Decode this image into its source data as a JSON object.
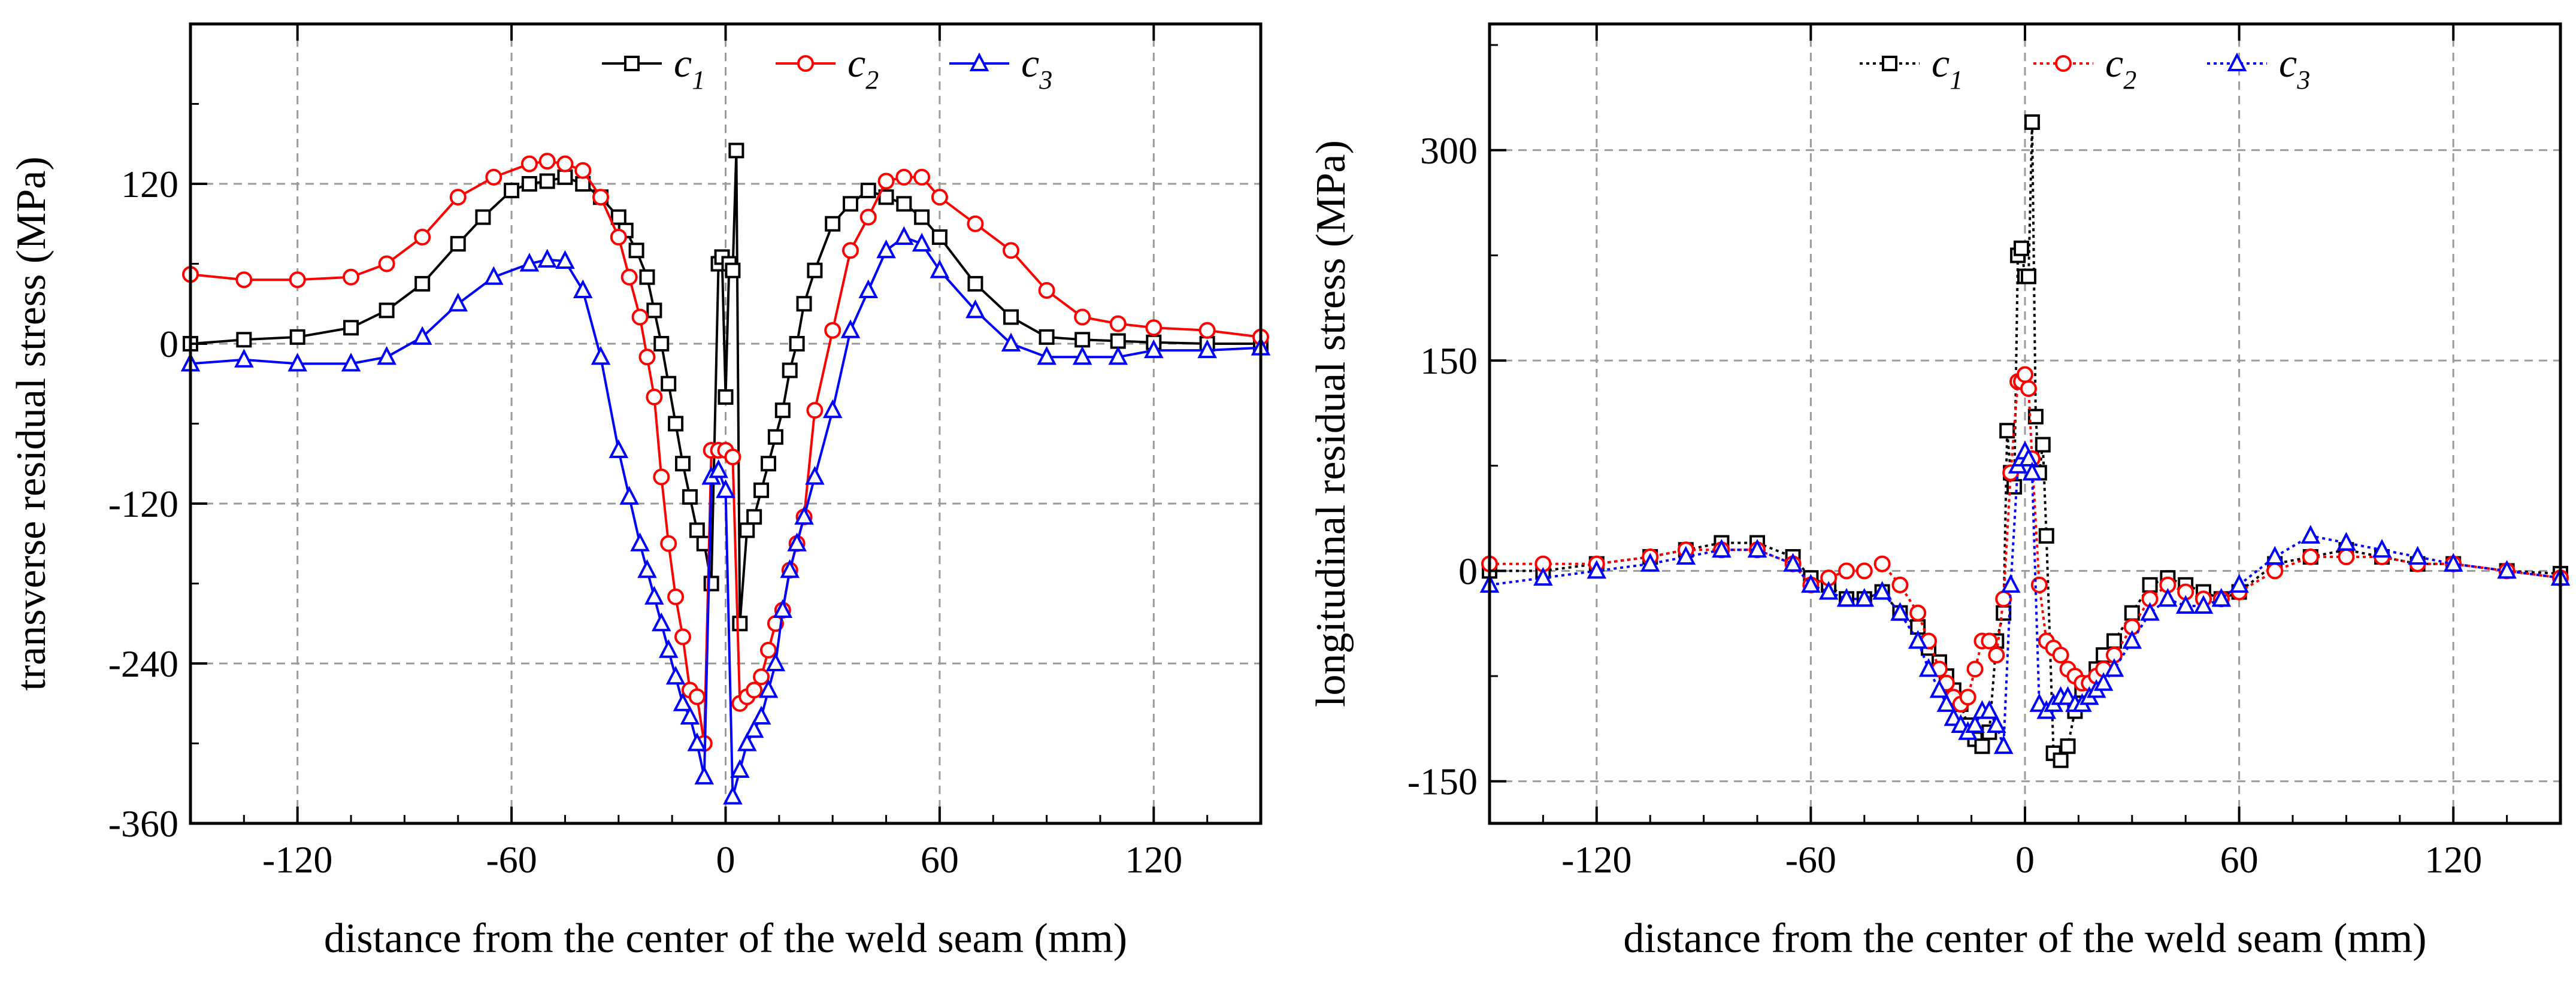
{
  "chart_data": [
    {
      "type": "line",
      "id": "transverse",
      "xlabel": "distance from the center of the weld seam (mm)",
      "ylabel": "transverse residual stress (MPa)",
      "xlim": [
        -150,
        150
      ],
      "ylim": [
        -360,
        240
      ],
      "xticks": [
        -120,
        -60,
        0,
        60,
        120
      ],
      "yticks": [
        -360,
        -240,
        -120,
        0,
        120
      ],
      "grid": true,
      "legend_position": "top-right",
      "series": [
        {
          "name": "c1",
          "letter": "c",
          "subscript": "1",
          "color": "#000000",
          "marker": "square",
          "dotted": false,
          "x": [
            -150,
            -135,
            -120,
            -105,
            -95,
            -85,
            -75,
            -68,
            -60,
            -55,
            -50,
            -45,
            -40,
            -35,
            -30,
            -28,
            -25,
            -22,
            -20,
            -18,
            -16,
            -14,
            -12,
            -10,
            -8,
            -6,
            -4,
            -2,
            -1,
            0,
            1,
            2,
            3,
            4,
            6,
            8,
            10,
            12,
            14,
            16,
            18,
            20,
            22,
            25,
            30,
            35,
            40,
            45,
            50,
            55,
            60,
            70,
            80,
            90,
            100,
            110,
            120,
            135,
            150
          ],
          "y": [
            0,
            3,
            5,
            12,
            25,
            45,
            75,
            95,
            115,
            120,
            122,
            125,
            120,
            110,
            95,
            85,
            70,
            50,
            25,
            0,
            -30,
            -60,
            -90,
            -115,
            -140,
            -150,
            -180,
            60,
            65,
            -40,
            60,
            55,
            145,
            -210,
            -140,
            -130,
            -110,
            -90,
            -70,
            -50,
            -20,
            0,
            30,
            55,
            90,
            105,
            115,
            110,
            105,
            95,
            80,
            45,
            20,
            5,
            3,
            2,
            1,
            0,
            0
          ]
        },
        {
          "name": "c2",
          "letter": "c",
          "subscript": "2",
          "color": "#ff0000",
          "marker": "circle",
          "dotted": false,
          "x": [
            -150,
            -135,
            -120,
            -105,
            -95,
            -85,
            -75,
            -65,
            -55,
            -50,
            -45,
            -40,
            -35,
            -30,
            -27,
            -24,
            -22,
            -20,
            -18,
            -16,
            -14,
            -12,
            -10,
            -8,
            -6,
            -4,
            -2,
            0,
            2,
            4,
            6,
            8,
            10,
            12,
            14,
            16,
            18,
            20,
            22,
            25,
            30,
            35,
            40,
            45,
            50,
            55,
            60,
            70,
            80,
            90,
            100,
            110,
            120,
            135,
            150
          ],
          "y": [
            52,
            48,
            48,
            50,
            60,
            80,
            110,
            125,
            135,
            137,
            135,
            130,
            110,
            80,
            50,
            20,
            -10,
            -40,
            -100,
            -150,
            -190,
            -220,
            -260,
            -265,
            -300,
            -80,
            -80,
            -80,
            -85,
            -270,
            -265,
            -260,
            -250,
            -230,
            -210,
            -200,
            -170,
            -150,
            -130,
            -50,
            10,
            70,
            95,
            122,
            125,
            125,
            110,
            90,
            70,
            40,
            20,
            15,
            12,
            10,
            5
          ]
        },
        {
          "name": "c3",
          "letter": "c",
          "subscript": "3",
          "color": "#0000ff",
          "marker": "triangle",
          "dotted": false,
          "x": [
            -150,
            -135,
            -120,
            -105,
            -95,
            -85,
            -75,
            -65,
            -55,
            -50,
            -45,
            -40,
            -35,
            -30,
            -27,
            -24,
            -22,
            -20,
            -18,
            -16,
            -14,
            -12,
            -10,
            -8,
            -6,
            -4,
            -2,
            0,
            2,
            4,
            6,
            8,
            10,
            12,
            14,
            16,
            18,
            20,
            22,
            25,
            30,
            35,
            40,
            45,
            50,
            55,
            60,
            70,
            80,
            90,
            100,
            110,
            120,
            135,
            150
          ],
          "y": [
            -15,
            -12,
            -15,
            -15,
            -10,
            5,
            30,
            50,
            60,
            63,
            62,
            40,
            -10,
            -80,
            -115,
            -150,
            -170,
            -190,
            -210,
            -230,
            -250,
            -270,
            -280,
            -300,
            -325,
            -100,
            -95,
            -110,
            -340,
            -320,
            -300,
            -290,
            -280,
            -260,
            -240,
            -200,
            -170,
            -150,
            -130,
            -100,
            -50,
            10,
            40,
            70,
            80,
            75,
            55,
            25,
            0,
            -10,
            -10,
            -10,
            -5,
            -5,
            -3
          ]
        }
      ]
    },
    {
      "type": "line",
      "id": "longitudinal",
      "xlabel": "distance from the center of the weld seam (mm)",
      "ylabel": "longitudinal residual stress (MPa)",
      "xlim": [
        -150,
        150
      ],
      "ylim": [
        -180,
        390
      ],
      "xticks": [
        -120,
        -60,
        0,
        60,
        120
      ],
      "yticks": [
        -150,
        0,
        150,
        300
      ],
      "grid": true,
      "legend_position": "top-right",
      "series": [
        {
          "name": "c1",
          "letter": "c",
          "subscript": "1",
          "color": "#000000",
          "marker": "square",
          "dotted": true,
          "x": [
            -150,
            -135,
            -120,
            -105,
            -95,
            -85,
            -75,
            -65,
            -60,
            -55,
            -50,
            -45,
            -40,
            -35,
            -30,
            -27,
            -24,
            -22,
            -20,
            -18,
            -16,
            -14,
            -12,
            -10,
            -8,
            -6,
            -5,
            -4,
            -3,
            -2,
            -1,
            0,
            1,
            2,
            3,
            4,
            5,
            6,
            8,
            10,
            12,
            14,
            16,
            18,
            20,
            22,
            25,
            30,
            35,
            40,
            45,
            50,
            55,
            60,
            70,
            80,
            90,
            100,
            110,
            120,
            135,
            150
          ],
          "y": [
            0,
            0,
            5,
            10,
            15,
            20,
            20,
            10,
            -5,
            -10,
            -20,
            -20,
            -15,
            -30,
            -40,
            -55,
            -65,
            -75,
            -85,
            -95,
            -110,
            -120,
            -125,
            -115,
            -50,
            -30,
            100,
            70,
            60,
            225,
            230,
            210,
            210,
            320,
            110,
            70,
            90,
            25,
            -130,
            -135,
            -125,
            -100,
            -85,
            -80,
            -70,
            -60,
            -50,
            -30,
            -10,
            -5,
            -10,
            -15,
            -20,
            -15,
            5,
            10,
            15,
            10,
            5,
            5,
            0,
            -2
          ]
        },
        {
          "name": "c2",
          "letter": "c",
          "subscript": "2",
          "color": "#ff0000",
          "marker": "circle",
          "dotted": true,
          "x": [
            -150,
            -135,
            -120,
            -105,
            -95,
            -85,
            -75,
            -65,
            -60,
            -55,
            -50,
            -45,
            -40,
            -35,
            -30,
            -27,
            -24,
            -22,
            -20,
            -18,
            -16,
            -14,
            -12,
            -10,
            -8,
            -6,
            -4,
            -2,
            -1,
            0,
            1,
            2,
            4,
            6,
            8,
            10,
            12,
            14,
            16,
            18,
            20,
            22,
            25,
            30,
            35,
            40,
            45,
            50,
            55,
            60,
            70,
            80,
            90,
            100,
            110,
            120,
            135,
            150
          ],
          "y": [
            5,
            5,
            5,
            10,
            15,
            15,
            15,
            5,
            -10,
            -5,
            0,
            0,
            5,
            -10,
            -30,
            -50,
            -70,
            -80,
            -90,
            -95,
            -90,
            -70,
            -50,
            -50,
            -60,
            -20,
            70,
            135,
            135,
            140,
            130,
            80,
            -10,
            -50,
            -55,
            -60,
            -70,
            -75,
            -80,
            -80,
            -75,
            -70,
            -60,
            -40,
            -20,
            -10,
            -15,
            -20,
            -20,
            -15,
            0,
            10,
            10,
            10,
            5,
            5,
            0,
            -5
          ]
        },
        {
          "name": "c3",
          "letter": "c",
          "subscript": "3",
          "color": "#0000ff",
          "marker": "triangle",
          "dotted": true,
          "x": [
            -150,
            -135,
            -120,
            -105,
            -95,
            -85,
            -75,
            -65,
            -60,
            -55,
            -50,
            -45,
            -40,
            -35,
            -30,
            -27,
            -24,
            -22,
            -20,
            -18,
            -16,
            -14,
            -12,
            -10,
            -8,
            -6,
            -4,
            -2,
            -1,
            0,
            1,
            2,
            4,
            6,
            8,
            10,
            12,
            14,
            16,
            18,
            20,
            22,
            25,
            30,
            35,
            40,
            45,
            50,
            55,
            60,
            70,
            80,
            90,
            100,
            110,
            120,
            135,
            150
          ],
          "y": [
            -10,
            -5,
            0,
            5,
            10,
            15,
            15,
            5,
            -10,
            -15,
            -20,
            -20,
            -15,
            -30,
            -50,
            -70,
            -85,
            -95,
            -105,
            -110,
            -115,
            -110,
            -100,
            -100,
            -110,
            -125,
            -10,
            75,
            80,
            85,
            80,
            70,
            -95,
            -100,
            -95,
            -90,
            -90,
            -95,
            -95,
            -90,
            -85,
            -80,
            -70,
            -50,
            -30,
            -20,
            -25,
            -25,
            -20,
            -10,
            10,
            25,
            20,
            15,
            10,
            5,
            0,
            -5
          ]
        }
      ]
    }
  ]
}
